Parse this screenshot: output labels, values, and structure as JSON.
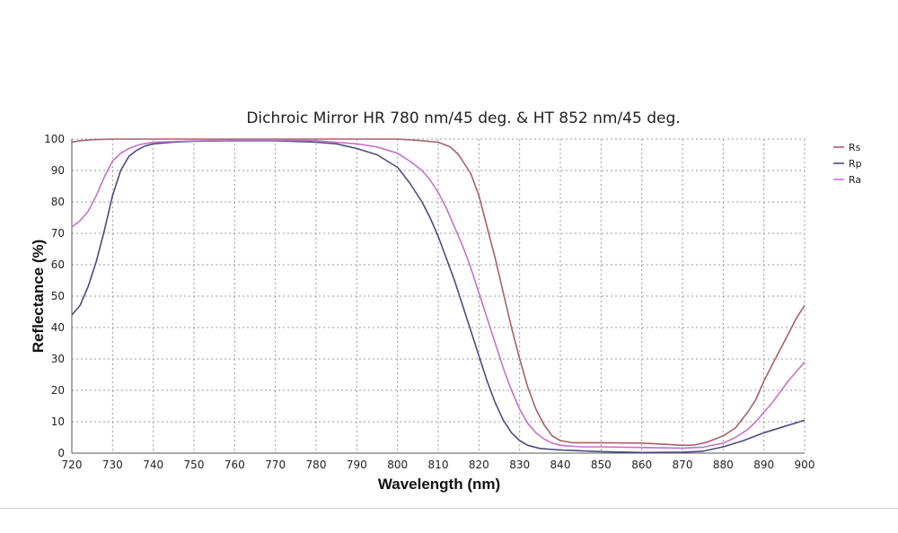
{
  "chart_data": {
    "type": "line",
    "title": "Dichroic Mirror HR 780 nm/45 deg. & HT 852 nm/45 deg.",
    "xlabel": "Wavelength (nm)",
    "ylabel": "Reflectance (%)",
    "xlim": [
      720,
      900
    ],
    "ylim": [
      0,
      100
    ],
    "xticks": [
      720,
      730,
      740,
      750,
      760,
      770,
      780,
      790,
      800,
      810,
      820,
      830,
      840,
      850,
      860,
      870,
      880,
      890,
      900
    ],
    "yticks": [
      0,
      10,
      20,
      30,
      40,
      50,
      60,
      70,
      80,
      90,
      100
    ],
    "grid": true,
    "legend_position": "top-right, outside",
    "series": [
      {
        "name": "Rs",
        "color": "#a8606a",
        "points": [
          [
            720,
            99
          ],
          [
            722,
            99.5
          ],
          [
            725,
            99.8
          ],
          [
            730,
            100
          ],
          [
            740,
            100
          ],
          [
            760,
            100
          ],
          [
            780,
            100
          ],
          [
            790,
            100
          ],
          [
            800,
            100
          ],
          [
            805,
            99.6
          ],
          [
            810,
            99
          ],
          [
            813,
            97.5
          ],
          [
            815,
            95
          ],
          [
            818,
            89
          ],
          [
            820,
            82
          ],
          [
            822,
            72
          ],
          [
            824,
            62
          ],
          [
            826,
            51
          ],
          [
            828,
            40
          ],
          [
            830,
            30
          ],
          [
            832,
            21
          ],
          [
            834,
            14
          ],
          [
            836,
            9
          ],
          [
            838,
            5.5
          ],
          [
            840,
            4
          ],
          [
            843,
            3.3
          ],
          [
            850,
            3.3
          ],
          [
            860,
            3.2
          ],
          [
            865,
            2.9
          ],
          [
            870,
            2.5
          ],
          [
            873,
            2.6
          ],
          [
            876,
            3.5
          ],
          [
            880,
            5.5
          ],
          [
            883,
            8
          ],
          [
            886,
            13
          ],
          [
            888,
            17
          ],
          [
            890,
            23
          ],
          [
            892,
            28
          ],
          [
            894,
            33
          ],
          [
            896,
            38
          ],
          [
            898,
            43
          ],
          [
            900,
            47
          ]
        ]
      },
      {
        "name": "Rp",
        "color": "#4c4c82",
        "points": [
          [
            720,
            44
          ],
          [
            722,
            47
          ],
          [
            724,
            53
          ],
          [
            726,
            61
          ],
          [
            728,
            71
          ],
          [
            730,
            82
          ],
          [
            732,
            90
          ],
          [
            734,
            94.5
          ],
          [
            736,
            96.5
          ],
          [
            738,
            97.8
          ],
          [
            740,
            98.5
          ],
          [
            745,
            99
          ],
          [
            750,
            99.3
          ],
          [
            760,
            99.5
          ],
          [
            770,
            99.5
          ],
          [
            780,
            99
          ],
          [
            785,
            98.5
          ],
          [
            790,
            97
          ],
          [
            795,
            95
          ],
          [
            800,
            91
          ],
          [
            803,
            86
          ],
          [
            806,
            80
          ],
          [
            808,
            75
          ],
          [
            810,
            69
          ],
          [
            812,
            62
          ],
          [
            814,
            55
          ],
          [
            816,
            47
          ],
          [
            818,
            39
          ],
          [
            820,
            31
          ],
          [
            822,
            23
          ],
          [
            824,
            16
          ],
          [
            826,
            10.5
          ],
          [
            828,
            6.5
          ],
          [
            830,
            4
          ],
          [
            832,
            2.5
          ],
          [
            835,
            1.5
          ],
          [
            840,
            1
          ],
          [
            850,
            0.5
          ],
          [
            860,
            0.2
          ],
          [
            870,
            0.3
          ],
          [
            875,
            0.6
          ],
          [
            880,
            2
          ],
          [
            885,
            4
          ],
          [
            890,
            6.5
          ],
          [
            895,
            8.5
          ],
          [
            900,
            10.5
          ]
        ]
      },
      {
        "name": "Ra",
        "color": "#c672c6",
        "points": [
          [
            720,
            72
          ],
          [
            722,
            74
          ],
          [
            724,
            77
          ],
          [
            726,
            82
          ],
          [
            728,
            88
          ],
          [
            730,
            93
          ],
          [
            732,
            95.5
          ],
          [
            734,
            97
          ],
          [
            736,
            98
          ],
          [
            738,
            98.6
          ],
          [
            740,
            99
          ],
          [
            750,
            99.4
          ],
          [
            760,
            99.7
          ],
          [
            770,
            99.7
          ],
          [
            780,
            99.5
          ],
          [
            790,
            98.5
          ],
          [
            795,
            97.5
          ],
          [
            800,
            95.5
          ],
          [
            803,
            93
          ],
          [
            806,
            90
          ],
          [
            808,
            87
          ],
          [
            810,
            83
          ],
          [
            812,
            78
          ],
          [
            814,
            72
          ],
          [
            816,
            66
          ],
          [
            818,
            59
          ],
          [
            820,
            51
          ],
          [
            822,
            43
          ],
          [
            824,
            35
          ],
          [
            826,
            27
          ],
          [
            828,
            20
          ],
          [
            830,
            14
          ],
          [
            832,
            9.5
          ],
          [
            834,
            6.5
          ],
          [
            836,
            4.5
          ],
          [
            838,
            3.2
          ],
          [
            840,
            2.5
          ],
          [
            845,
            2
          ],
          [
            850,
            2
          ],
          [
            860,
            1.8
          ],
          [
            865,
            1.7
          ],
          [
            870,
            1.6
          ],
          [
            875,
            1.9
          ],
          [
            880,
            3.2
          ],
          [
            883,
            5
          ],
          [
            886,
            7.5
          ],
          [
            888,
            10
          ],
          [
            890,
            13
          ],
          [
            892,
            16
          ],
          [
            894,
            19.5
          ],
          [
            896,
            23
          ],
          [
            898,
            26
          ],
          [
            900,
            29
          ]
        ]
      }
    ]
  }
}
